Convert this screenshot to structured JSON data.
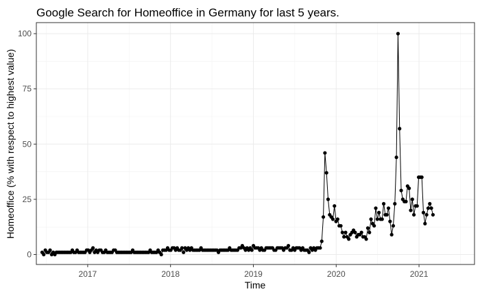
{
  "chart_data": {
    "type": "line",
    "title": "Google Search for Homeoffice in Germany for last 5 years.",
    "xlabel": "Time",
    "ylabel": "Homeoffice (% with respect to highest value)",
    "x_unit": "decimal year",
    "xlim": [
      2016.38,
      2021.67
    ],
    "ylim": [
      -4.5,
      105
    ],
    "x_ticks": [
      2017,
      2018,
      2019,
      2020,
      2021
    ],
    "x_tick_labels": [
      "2017",
      "2018",
      "2019",
      "2020",
      "2021"
    ],
    "y_ticks": [
      0,
      25,
      50,
      75,
      100
    ],
    "y_tick_labels": [
      "0",
      "25",
      "50",
      "75",
      "100"
    ],
    "grid": true,
    "legend": "none",
    "series": [
      {
        "name": "Homeoffice",
        "color": "#000000",
        "markers": true,
        "x_start": 2016.45,
        "x_step": 0.01918,
        "values": [
          1,
          0,
          2,
          1,
          1,
          2,
          0,
          1,
          0,
          1,
          1,
          1,
          1,
          1,
          1,
          1,
          1,
          1,
          1,
          2,
          1,
          1,
          2,
          1,
          1,
          1,
          1,
          1,
          2,
          2,
          1,
          2,
          3,
          1,
          2,
          1,
          2,
          2,
          1,
          1,
          2,
          1,
          1,
          1,
          1,
          2,
          2,
          1,
          1,
          1,
          1,
          1,
          1,
          1,
          1,
          1,
          1,
          2,
          1,
          1,
          1,
          1,
          1,
          1,
          1,
          1,
          1,
          1,
          2,
          1,
          1,
          1,
          1,
          2,
          1,
          0,
          2,
          2,
          2,
          3,
          2,
          2,
          3,
          3,
          2,
          3,
          2,
          2,
          3,
          1,
          3,
          2,
          3,
          2,
          3,
          2,
          2,
          2,
          2,
          2,
          3,
          2,
          2,
          2,
          2,
          2,
          2,
          2,
          2,
          2,
          2,
          1,
          2,
          2,
          2,
          2,
          2,
          2,
          3,
          2,
          2,
          2,
          2,
          2,
          3,
          3,
          4,
          3,
          2,
          3,
          2,
          3,
          2,
          4,
          3,
          3,
          3,
          2,
          3,
          2,
          2,
          3,
          3,
          3,
          3,
          3,
          2,
          2,
          3,
          3,
          3,
          3,
          2,
          3,
          3,
          4,
          2,
          2,
          3,
          2,
          3,
          3,
          3,
          2,
          3,
          2,
          2,
          2,
          1,
          3,
          2,
          3,
          2,
          3,
          3,
          3,
          6,
          17,
          46,
          37,
          25,
          18,
          17,
          16,
          22,
          15,
          16,
          13,
          13,
          10,
          8,
          10,
          8,
          7,
          9,
          10,
          11,
          10,
          8,
          9,
          9,
          10,
          8,
          8,
          7,
          12,
          10,
          16,
          14,
          13,
          21,
          16,
          19,
          16,
          16,
          23,
          18,
          18,
          21,
          15,
          9,
          13,
          23,
          44,
          100,
          57,
          29,
          25,
          24,
          24,
          31,
          30,
          20,
          25,
          18,
          22,
          22,
          35,
          35,
          35,
          19,
          14,
          18,
          21,
          23,
          21,
          18
        ]
      }
    ]
  }
}
